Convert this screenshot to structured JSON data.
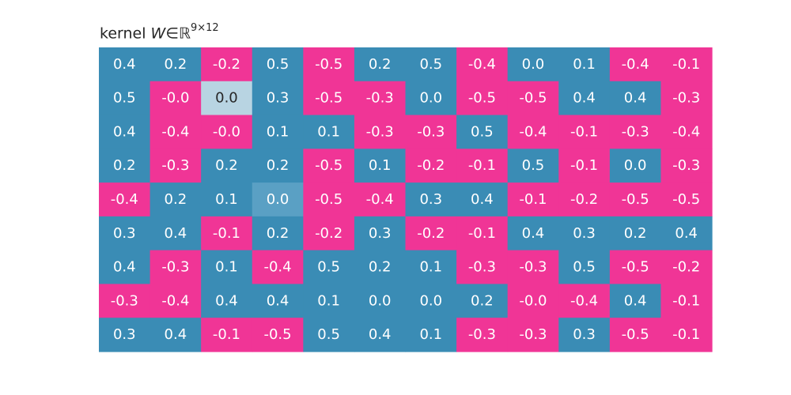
{
  "title": {
    "prefix": "kernel ",
    "variable": "W",
    "relation": "∈",
    "set": "ℝ",
    "exponent": "9×12"
  },
  "chart_data": {
    "type": "heatmap",
    "rows": 9,
    "cols": 12,
    "colors": {
      "positive": "#3a8cb5",
      "negative": "#f03596",
      "light_zero": "#b8d4e2",
      "mid_zero": "#5aa0c4",
      "text_light": "#ffffff",
      "text_dark": "#262626"
    },
    "cells": [
      [
        {
          "t": "0.4",
          "s": "pos"
        },
        {
          "t": "0.2",
          "s": "pos"
        },
        {
          "t": "-0.2",
          "s": "neg"
        },
        {
          "t": "0.5",
          "s": "pos"
        },
        {
          "t": "-0.5",
          "s": "neg"
        },
        {
          "t": "0.2",
          "s": "pos"
        },
        {
          "t": "0.5",
          "s": "pos"
        },
        {
          "t": "-0.4",
          "s": "neg"
        },
        {
          "t": "0.0",
          "s": "pos"
        },
        {
          "t": "0.1",
          "s": "pos"
        },
        {
          "t": "-0.4",
          "s": "neg"
        },
        {
          "t": "-0.1",
          "s": "neg"
        }
      ],
      [
        {
          "t": "0.5",
          "s": "pos"
        },
        {
          "t": "-0.0",
          "s": "neg"
        },
        {
          "t": "0.0",
          "s": "light"
        },
        {
          "t": "0.3",
          "s": "pos"
        },
        {
          "t": "-0.5",
          "s": "neg"
        },
        {
          "t": "-0.3",
          "s": "neg"
        },
        {
          "t": "0.0",
          "s": "pos"
        },
        {
          "t": "-0.5",
          "s": "neg"
        },
        {
          "t": "-0.5",
          "s": "neg"
        },
        {
          "t": "0.4",
          "s": "pos"
        },
        {
          "t": "0.4",
          "s": "pos"
        },
        {
          "t": "-0.3",
          "s": "neg"
        }
      ],
      [
        {
          "t": "0.4",
          "s": "pos"
        },
        {
          "t": "-0.4",
          "s": "neg"
        },
        {
          "t": "-0.0",
          "s": "neg"
        },
        {
          "t": "0.1",
          "s": "pos"
        },
        {
          "t": "0.1",
          "s": "pos"
        },
        {
          "t": "-0.3",
          "s": "neg"
        },
        {
          "t": "-0.3",
          "s": "neg"
        },
        {
          "t": "0.5",
          "s": "pos"
        },
        {
          "t": "-0.4",
          "s": "neg"
        },
        {
          "t": "-0.1",
          "s": "neg"
        },
        {
          "t": "-0.3",
          "s": "neg"
        },
        {
          "t": "-0.4",
          "s": "neg"
        }
      ],
      [
        {
          "t": "0.2",
          "s": "pos"
        },
        {
          "t": "-0.3",
          "s": "neg"
        },
        {
          "t": "0.2",
          "s": "pos"
        },
        {
          "t": "0.2",
          "s": "pos"
        },
        {
          "t": "-0.5",
          "s": "neg"
        },
        {
          "t": "0.1",
          "s": "pos"
        },
        {
          "t": "-0.2",
          "s": "neg"
        },
        {
          "t": "-0.1",
          "s": "neg"
        },
        {
          "t": "0.5",
          "s": "pos"
        },
        {
          "t": "-0.1",
          "s": "neg"
        },
        {
          "t": "0.0",
          "s": "pos"
        },
        {
          "t": "-0.3",
          "s": "neg"
        }
      ],
      [
        {
          "t": "-0.4",
          "s": "neg"
        },
        {
          "t": "0.2",
          "s": "pos"
        },
        {
          "t": "0.1",
          "s": "pos"
        },
        {
          "t": "0.0",
          "s": "mid"
        },
        {
          "t": "-0.5",
          "s": "neg"
        },
        {
          "t": "-0.4",
          "s": "neg"
        },
        {
          "t": "0.3",
          "s": "pos"
        },
        {
          "t": "0.4",
          "s": "pos"
        },
        {
          "t": "-0.1",
          "s": "neg"
        },
        {
          "t": "-0.2",
          "s": "neg"
        },
        {
          "t": "-0.5",
          "s": "neg"
        },
        {
          "t": "-0.5",
          "s": "neg"
        }
      ],
      [
        {
          "t": "0.3",
          "s": "pos"
        },
        {
          "t": "0.4",
          "s": "pos"
        },
        {
          "t": "-0.1",
          "s": "neg"
        },
        {
          "t": "0.2",
          "s": "pos"
        },
        {
          "t": "-0.2",
          "s": "neg"
        },
        {
          "t": "0.3",
          "s": "pos"
        },
        {
          "t": "-0.2",
          "s": "neg"
        },
        {
          "t": "-0.1",
          "s": "neg"
        },
        {
          "t": "0.4",
          "s": "pos"
        },
        {
          "t": "0.3",
          "s": "pos"
        },
        {
          "t": "0.2",
          "s": "pos"
        },
        {
          "t": "0.4",
          "s": "pos"
        }
      ],
      [
        {
          "t": "0.4",
          "s": "pos"
        },
        {
          "t": "-0.3",
          "s": "neg"
        },
        {
          "t": "0.1",
          "s": "pos"
        },
        {
          "t": "-0.4",
          "s": "neg"
        },
        {
          "t": "0.5",
          "s": "pos"
        },
        {
          "t": "0.2",
          "s": "pos"
        },
        {
          "t": "0.1",
          "s": "pos"
        },
        {
          "t": "-0.3",
          "s": "neg"
        },
        {
          "t": "-0.3",
          "s": "neg"
        },
        {
          "t": "0.5",
          "s": "pos"
        },
        {
          "t": "-0.5",
          "s": "neg"
        },
        {
          "t": "-0.2",
          "s": "neg"
        }
      ],
      [
        {
          "t": "-0.3",
          "s": "neg"
        },
        {
          "t": "-0.4",
          "s": "neg"
        },
        {
          "t": "0.4",
          "s": "pos"
        },
        {
          "t": "0.4",
          "s": "pos"
        },
        {
          "t": "0.1",
          "s": "pos"
        },
        {
          "t": "0.0",
          "s": "pos"
        },
        {
          "t": "0.0",
          "s": "pos"
        },
        {
          "t": "0.2",
          "s": "pos"
        },
        {
          "t": "-0.0",
          "s": "neg"
        },
        {
          "t": "-0.4",
          "s": "neg"
        },
        {
          "t": "0.4",
          "s": "pos"
        },
        {
          "t": "-0.1",
          "s": "neg"
        }
      ],
      [
        {
          "t": "0.3",
          "s": "pos"
        },
        {
          "t": "0.4",
          "s": "pos"
        },
        {
          "t": "-0.1",
          "s": "neg"
        },
        {
          "t": "-0.5",
          "s": "neg"
        },
        {
          "t": "0.5",
          "s": "pos"
        },
        {
          "t": "0.4",
          "s": "pos"
        },
        {
          "t": "0.1",
          "s": "pos"
        },
        {
          "t": "-0.3",
          "s": "neg"
        },
        {
          "t": "-0.3",
          "s": "neg"
        },
        {
          "t": "0.3",
          "s": "pos"
        },
        {
          "t": "-0.5",
          "s": "neg"
        },
        {
          "t": "-0.1",
          "s": "neg"
        }
      ]
    ]
  }
}
